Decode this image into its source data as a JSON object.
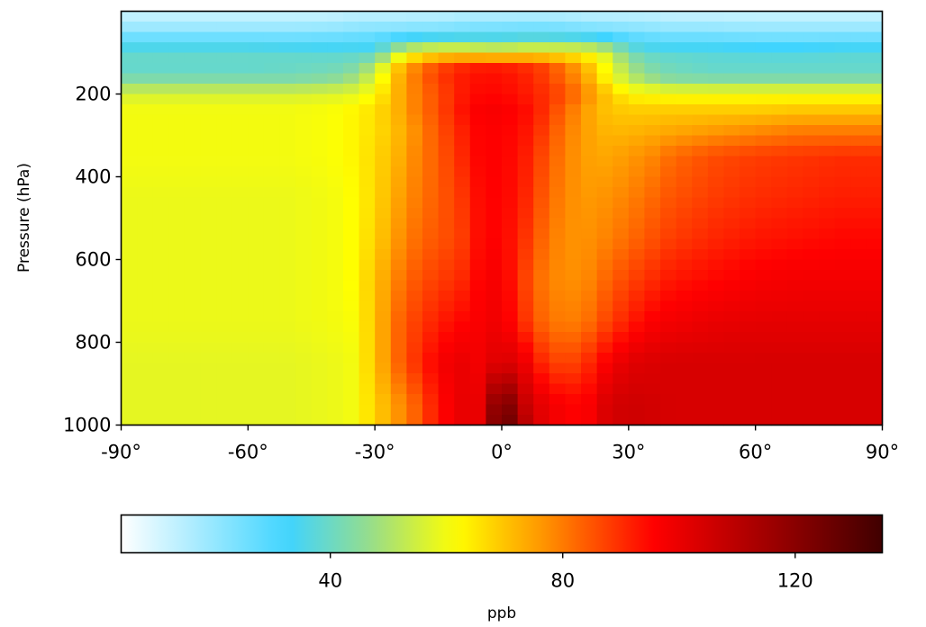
{
  "chart_data": {
    "type": "heatmap",
    "title": "",
    "xlabel": "",
    "ylabel": "Pressure (hPa)",
    "xlim": [
      -90,
      90
    ],
    "ylim": [
      0,
      1000
    ],
    "x_ticks": [
      -90,
      -60,
      -30,
      0,
      30,
      60,
      90
    ],
    "x_tick_labels": [
      "-90°",
      "-60°",
      "-30°",
      "0°",
      "30°",
      "60°",
      "90°"
    ],
    "y_ticks": [
      200,
      400,
      600,
      800,
      1000
    ],
    "y_tick_labels": [
      "200",
      "400",
      "600",
      "800",
      "1000"
    ],
    "grid": false,
    "colormap_stops": [
      [
        0.0,
        "#ffffff"
      ],
      [
        0.22,
        "#3fd4ff"
      ],
      [
        0.33,
        "#99dd88"
      ],
      [
        0.44,
        "#ffff00"
      ],
      [
        0.55,
        "#ff9900"
      ],
      [
        0.7,
        "#ff0000"
      ],
      [
        1.0,
        "#400000"
      ]
    ],
    "colorbar": {
      "label": "ppb",
      "vmin": 4,
      "vmax": 135,
      "ticks": [
        40,
        80,
        120
      ],
      "tick_labels": [
        "40",
        "80",
        "120"
      ]
    },
    "lat_grid": [
      -90,
      -80,
      -70,
      -60,
      -50,
      -40,
      -35,
      -30,
      -25,
      -20,
      -15,
      -10,
      -5,
      0,
      5,
      10,
      15,
      20,
      25,
      30,
      35,
      40,
      50,
      60,
      70,
      80,
      90
    ],
    "pressure_grid": [
      0,
      50,
      100,
      130,
      160,
      200,
      240,
      290,
      350,
      450,
      550,
      650,
      750,
      850,
      950,
      1000
    ],
    "values": [
      [
        11,
        11,
        11,
        11,
        11,
        11,
        12,
        12,
        12,
        12,
        12,
        13,
        13,
        13,
        13,
        13,
        13,
        12,
        12,
        12,
        12,
        11,
        11,
        11,
        11,
        11,
        11
      ],
      [
        21,
        21,
        21,
        21,
        21,
        22,
        23,
        24,
        24,
        25,
        25,
        26,
        27,
        27,
        28,
        28,
        27,
        26,
        25,
        24,
        23,
        22,
        22,
        21,
        21,
        21,
        21
      ],
      [
        40,
        40,
        40,
        40,
        39,
        38,
        38,
        37,
        52,
        60,
        63,
        63,
        61,
        60,
        62,
        62,
        62,
        61,
        55,
        42,
        39,
        38,
        38,
        37,
        37,
        38,
        38
      ],
      [
        38,
        38,
        38,
        38,
        39,
        40,
        42,
        50,
        68,
        79,
        86,
        90,
        92,
        92,
        90,
        87,
        80,
        71,
        60,
        48,
        42,
        40,
        38,
        38,
        38,
        38,
        38
      ],
      [
        42,
        42,
        42,
        42,
        42,
        44,
        48,
        56,
        71,
        81,
        88,
        92,
        94,
        94,
        92,
        88,
        82,
        74,
        62,
        52,
        47,
        43,
        42,
        42,
        42,
        42,
        42
      ],
      [
        56,
        56,
        56,
        56,
        56,
        57,
        58,
        62,
        72,
        80,
        86,
        92,
        95,
        95,
        93,
        90,
        86,
        78,
        70,
        63,
        62,
        61,
        61,
        61,
        61,
        61,
        61
      ],
      [
        60,
        60,
        60,
        60,
        60,
        61,
        63,
        66,
        72,
        80,
        86,
        93,
        97,
        97,
        95,
        90,
        82,
        75,
        70,
        69,
        69,
        69,
        69,
        69,
        70,
        70,
        70
      ],
      [
        60,
        60,
        60,
        60,
        60,
        61,
        63,
        66,
        71,
        78,
        85,
        91,
        96,
        96,
        94,
        88,
        80,
        75,
        72,
        72,
        73,
        74,
        76,
        78,
        80,
        80,
        80
      ],
      [
        60,
        60,
        60,
        60,
        60,
        61,
        63,
        67,
        72,
        79,
        84,
        90,
        96,
        96,
        93,
        86,
        79,
        75,
        74,
        76,
        78,
        82,
        86,
        88,
        89,
        90,
        90
      ],
      [
        59,
        59,
        59,
        59,
        59,
        60,
        62,
        67,
        74,
        80,
        84,
        88,
        95,
        96,
        92,
        84,
        78,
        76,
        77,
        79,
        82,
        85,
        88,
        90,
        91,
        92,
        92
      ],
      [
        59,
        59,
        59,
        59,
        59,
        60,
        62,
        68,
        76,
        82,
        85,
        87,
        95,
        96,
        90,
        82,
        77,
        77,
        79,
        82,
        85,
        88,
        91,
        93,
        94,
        95,
        95
      ],
      [
        59,
        59,
        59,
        59,
        59,
        60,
        62,
        70,
        79,
        85,
        88,
        90,
        96,
        98,
        88,
        80,
        77,
        78,
        83,
        87,
        90,
        93,
        95,
        97,
        98,
        98,
        98
      ],
      [
        59,
        59,
        59,
        59,
        59,
        60,
        61,
        70,
        82,
        88,
        92,
        95,
        97,
        99,
        90,
        82,
        79,
        81,
        87,
        92,
        96,
        98,
        100,
        101,
        101,
        101,
        101
      ],
      [
        58,
        58,
        58,
        58,
        58,
        59,
        60,
        70,
        82,
        90,
        97,
        100,
        98,
        104,
        100,
        90,
        86,
        90,
        97,
        102,
        103,
        104,
        104,
        104,
        104,
        104,
        104
      ],
      [
        58,
        58,
        58,
        58,
        58,
        59,
        60,
        68,
        76,
        84,
        94,
        100,
        100,
        128,
        108,
        100,
        96,
        96,
        104,
        106,
        105,
        104,
        104,
        104,
        104,
        104,
        104
      ],
      [
        58,
        58,
        58,
        58,
        58,
        59,
        60,
        68,
        76,
        84,
        94,
        100,
        100,
        132,
        112,
        100,
        96,
        96,
        104,
        106,
        105,
        104,
        104,
        104,
        104,
        104,
        104
      ]
    ]
  }
}
